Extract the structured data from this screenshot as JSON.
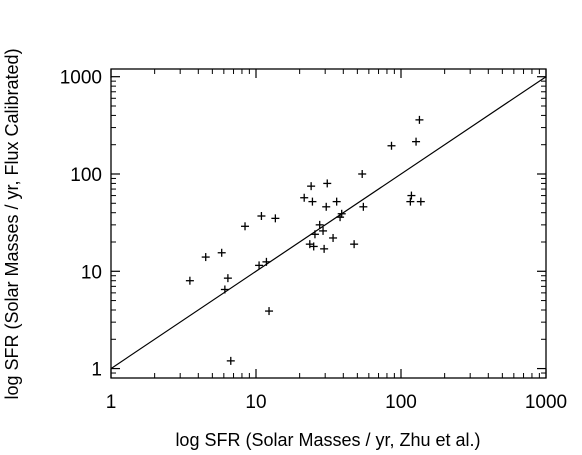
{
  "chart_data": {
    "type": "scatter",
    "xlabel": "log SFR (Solar Masses / yr, Zhu et al.)",
    "ylabel": "log SFR (Solar Masses / yr, Flux Calibrated)",
    "xscale": "log",
    "yscale": "log",
    "xlim": [
      1,
      1000
    ],
    "ylim": [
      0.8,
      1200
    ],
    "x_ticks": [
      {
        "value": 1,
        "label": "1"
      },
      {
        "value": 10,
        "label": "10"
      },
      {
        "value": 100,
        "label": "100"
      },
      {
        "value": 1000,
        "label": "1000"
      }
    ],
    "y_ticks": [
      {
        "value": 1,
        "label": "1"
      },
      {
        "value": 10,
        "label": "10"
      },
      {
        "value": 100,
        "label": "100"
      },
      {
        "value": 1000,
        "label": "1000"
      }
    ],
    "marker": "+",
    "reference_line": "y = x",
    "grid": false,
    "points": [
      {
        "x": 3.5,
        "y": 8.0
      },
      {
        "x": 4.5,
        "y": 14.0
      },
      {
        "x": 5.8,
        "y": 15.5
      },
      {
        "x": 6.1,
        "y": 6.5
      },
      {
        "x": 6.4,
        "y": 8.5
      },
      {
        "x": 6.7,
        "y": 1.2
      },
      {
        "x": 8.4,
        "y": 29.0
      },
      {
        "x": 10.5,
        "y": 11.5
      },
      {
        "x": 10.9,
        "y": 37.0
      },
      {
        "x": 11.8,
        "y": 12.5
      },
      {
        "x": 12.3,
        "y": 3.9
      },
      {
        "x": 13.6,
        "y": 35.0
      },
      {
        "x": 21.5,
        "y": 57.0
      },
      {
        "x": 23.5,
        "y": 19.0
      },
      {
        "x": 24.0,
        "y": 75.0
      },
      {
        "x": 24.5,
        "y": 52.0
      },
      {
        "x": 25.0,
        "y": 18.0
      },
      {
        "x": 25.5,
        "y": 24.0
      },
      {
        "x": 27.5,
        "y": 30.0
      },
      {
        "x": 29.0,
        "y": 26.0
      },
      {
        "x": 29.5,
        "y": 17.0
      },
      {
        "x": 30.5,
        "y": 46.0
      },
      {
        "x": 31.0,
        "y": 80.0
      },
      {
        "x": 34.0,
        "y": 22.0
      },
      {
        "x": 36.0,
        "y": 52.0
      },
      {
        "x": 38.0,
        "y": 36.0
      },
      {
        "x": 39.0,
        "y": 39.0
      },
      {
        "x": 47.5,
        "y": 19.0
      },
      {
        "x": 54.0,
        "y": 100.0
      },
      {
        "x": 55.0,
        "y": 46.0
      },
      {
        "x": 86.0,
        "y": 195.0
      },
      {
        "x": 116.0,
        "y": 52.0
      },
      {
        "x": 118.0,
        "y": 60.0
      },
      {
        "x": 127.0,
        "y": 215.0
      },
      {
        "x": 134.0,
        "y": 360.0
      },
      {
        "x": 137.0,
        "y": 52.0
      }
    ]
  }
}
